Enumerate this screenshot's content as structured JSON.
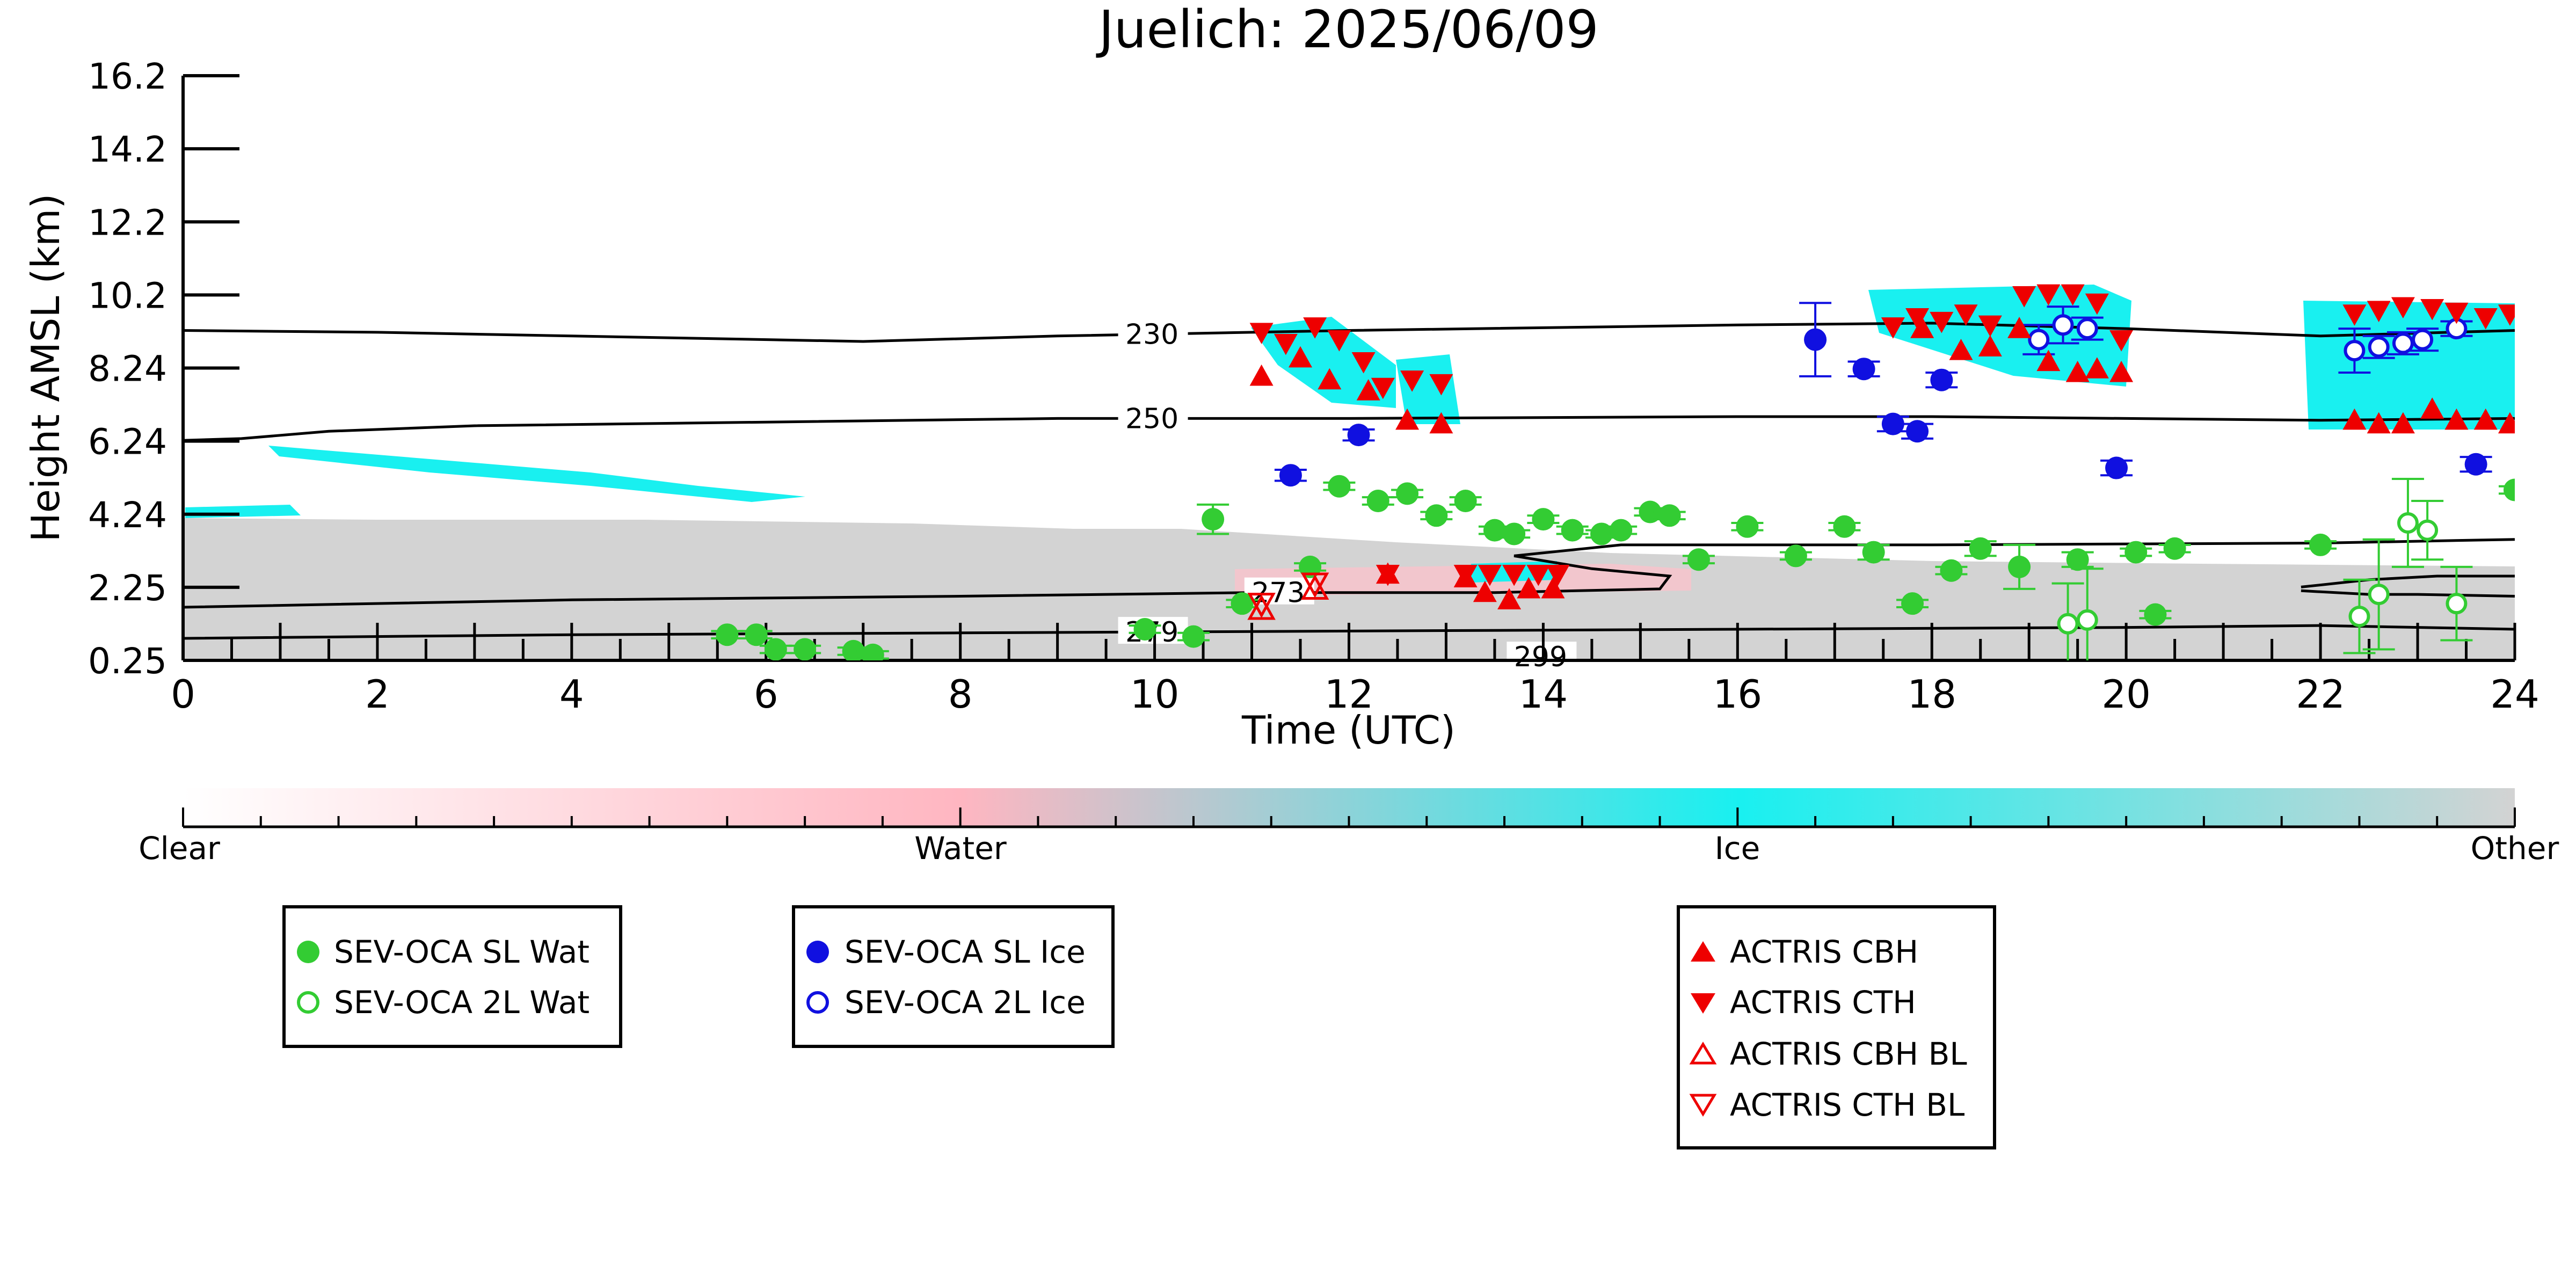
{
  "chart_data": {
    "type": "scatter",
    "title": "Juelich: 2025/06/09",
    "xlabel": "Time (UTC)",
    "ylabel": "Height AMSL (km)",
    "xlim": [
      0,
      24
    ],
    "ylim": [
      0.25,
      16.2
    ],
    "y_ticks": [
      "0.25",
      "2.25",
      "4.24",
      "6.24",
      "8.24",
      "10.2",
      "12.2",
      "14.2",
      "16.2"
    ],
    "x_ticks": [
      "0",
      "2",
      "4",
      "6",
      "8",
      "10",
      "12",
      "14",
      "16",
      "18",
      "20",
      "22",
      "24"
    ],
    "colors": {
      "sl_wat": "#33cc33",
      "l2_wat": "#33cc33",
      "sl_ice": "#1010e0",
      "l2_ice": "#1010e0",
      "actris": "#ee0000",
      "contour": "#000000",
      "ice_fill": "#19f0f0",
      "other_fill": "#d3d3d3",
      "water_fill": "#ffb6c1"
    },
    "colorbar": {
      "labels": [
        "Clear",
        "Water",
        "Ice",
        "Other"
      ],
      "stops": [
        "#ffffff",
        "#ffb6c1",
        "#19f0f0",
        "#d3d3d3"
      ]
    },
    "temperature_contours": [
      {
        "label": "230",
        "label_x": 10.0,
        "points": [
          [
            0,
            9.25
          ],
          [
            2,
            9.2
          ],
          [
            4,
            9.1
          ],
          [
            7,
            8.95
          ],
          [
            9,
            9.1
          ],
          [
            12,
            9.25
          ],
          [
            16,
            9.4
          ],
          [
            18,
            9.45
          ],
          [
            20,
            9.3
          ],
          [
            22,
            9.1
          ],
          [
            24,
            9.25
          ]
        ]
      },
      {
        "label": "250",
        "label_x": 10.0,
        "points": [
          [
            0,
            6.25
          ],
          [
            0.6,
            6.3
          ],
          [
            1.5,
            6.5
          ],
          [
            3,
            6.65
          ],
          [
            6,
            6.75
          ],
          [
            9,
            6.85
          ],
          [
            12,
            6.85
          ],
          [
            16,
            6.9
          ],
          [
            18,
            6.9
          ],
          [
            20,
            6.85
          ],
          [
            22,
            6.8
          ],
          [
            24,
            6.85
          ]
        ]
      },
      {
        "label": "273",
        "label_x": 11.3,
        "points": [
          [
            0,
            1.7
          ],
          [
            4,
            1.9
          ],
          [
            8,
            2.0
          ],
          [
            11,
            2.1
          ],
          [
            13.5,
            2.1
          ],
          [
            15.2,
            2.2
          ],
          [
            15.3,
            2.55
          ],
          [
            14.5,
            2.75
          ],
          [
            13.7,
            3.1
          ],
          [
            14.8,
            3.4
          ],
          [
            18,
            3.4
          ],
          [
            22,
            3.45
          ],
          [
            24,
            3.55
          ]
        ]
      },
      {
        "label": "",
        "label_x": 0,
        "points": [
          [
            21.8,
            2.15
          ],
          [
            22.5,
            2.05
          ],
          [
            23,
            2.05
          ],
          [
            24,
            2.0
          ]
        ]
      },
      {
        "label": "",
        "label_x": 0,
        "points": [
          [
            21.8,
            2.25
          ],
          [
            22.5,
            2.45
          ],
          [
            23.2,
            2.55
          ],
          [
            24,
            2.55
          ]
        ]
      },
      {
        "label": "279",
        "label_x": 10.0,
        "points": [
          [
            0,
            0.85
          ],
          [
            4,
            0.95
          ],
          [
            8,
            1.0
          ],
          [
            12,
            1.05
          ],
          [
            16,
            1.1
          ],
          [
            20,
            1.15
          ],
          [
            22,
            1.2
          ],
          [
            24,
            1.1
          ]
        ]
      },
      {
        "label": "299",
        "label_x": 14.0,
        "points": []
      }
    ],
    "series": [
      {
        "name": "SEV-OCA SL Wat",
        "key": "sl_wat",
        "filled": true,
        "marker": "circle",
        "x": [
          5.6,
          5.9,
          6.1,
          6.4,
          6.9,
          7.1,
          9.9,
          10.4,
          10.6,
          10.9,
          11.6,
          11.9,
          12.3,
          12.6,
          12.9,
          13.2,
          13.5,
          13.7,
          14.0,
          14.3,
          14.6,
          14.8,
          15.1,
          15.3,
          15.6,
          16.1,
          16.6,
          17.1,
          17.4,
          17.8,
          18.2,
          18.5,
          18.9,
          19.5,
          20.1,
          20.3,
          20.5,
          22.0,
          24.0
        ],
        "y": [
          0.95,
          0.95,
          0.55,
          0.55,
          0.5,
          0.4,
          1.1,
          0.9,
          4.1,
          1.8,
          2.8,
          5.0,
          4.6,
          4.8,
          4.2,
          4.6,
          3.8,
          3.7,
          4.1,
          3.8,
          3.7,
          3.8,
          4.3,
          4.2,
          3.0,
          3.9,
          3.1,
          3.9,
          3.2,
          1.8,
          2.7,
          3.3,
          2.8,
          3.0,
          3.2,
          1.5,
          3.3,
          3.4,
          4.9
        ],
        "yerr": [
          0.1,
          0.1,
          0.1,
          0.1,
          0.1,
          0.1,
          0.1,
          0.1,
          0.4,
          0.1,
          0.1,
          0.1,
          0.1,
          0.1,
          0.1,
          0.1,
          0.1,
          0.1,
          0.1,
          0.1,
          0.1,
          0.1,
          0.1,
          0.1,
          0.1,
          0.1,
          0.1,
          0.1,
          0.2,
          0.1,
          0.1,
          0.2,
          0.6,
          0.2,
          0.1,
          0.1,
          0.1,
          0.1,
          0.1
        ]
      },
      {
        "name": "SEV-OCA 2L Wat",
        "key": "l2_wat",
        "filled": false,
        "marker": "circle",
        "x": [
          19.4,
          19.6,
          22.4,
          22.6,
          22.9,
          23.1,
          23.4
        ],
        "y": [
          1.25,
          1.35,
          1.45,
          2.05,
          4.0,
          3.8,
          1.8
        ],
        "yerr": [
          1.1,
          1.4,
          1.0,
          1.5,
          1.2,
          0.8,
          1.0
        ]
      },
      {
        "name": "SEV-OCA SL Ice",
        "key": "sl_ice",
        "filled": true,
        "marker": "circle",
        "x": [
          11.4,
          12.1,
          16.8,
          17.3,
          17.6,
          17.85,
          18.1,
          19.9,
          23.6
        ],
        "y": [
          5.3,
          6.4,
          9.0,
          8.2,
          6.7,
          6.5,
          7.9,
          5.5,
          5.6
        ],
        "yerr": [
          0.15,
          0.15,
          1.0,
          0.2,
          0.2,
          0.2,
          0.2,
          0.2,
          0.2
        ]
      },
      {
        "name": "SEV-OCA 2L Ice",
        "key": "l2_ice",
        "filled": false,
        "marker": "circle",
        "x": [
          19.1,
          19.35,
          19.6,
          22.35,
          22.6,
          22.85,
          23.05,
          23.4
        ],
        "y": [
          9.0,
          9.4,
          9.3,
          8.7,
          8.8,
          8.9,
          9.0,
          9.3
        ],
        "yerr": [
          0.4,
          0.5,
          0.3,
          0.6,
          0.3,
          0.3,
          0.3,
          0.2
        ]
      },
      {
        "name": "ACTRIS CBH",
        "key": "actris",
        "filled": true,
        "marker": "triangle-up",
        "x": [
          11.1,
          11.5,
          11.8,
          12.2,
          12.6,
          12.95,
          12.4,
          13.2,
          13.4,
          13.65,
          13.85,
          14.1,
          17.9,
          18.3,
          18.6,
          18.9,
          19.2,
          19.5,
          19.7,
          19.95,
          22.35,
          22.6,
          22.85,
          23.15,
          23.4,
          23.7,
          23.95
        ],
        "y": [
          8.0,
          8.5,
          7.9,
          7.6,
          6.8,
          6.7,
          2.6,
          2.5,
          2.1,
          1.9,
          2.2,
          2.2,
          9.3,
          8.7,
          8.8,
          9.3,
          8.4,
          8.1,
          8.2,
          8.1,
          6.8,
          6.7,
          6.7,
          7.1,
          6.8,
          6.8,
          6.7
        ]
      },
      {
        "name": "ACTRIS CTH",
        "key": "actris",
        "filled": true,
        "marker": "triangle-down",
        "x": [
          11.1,
          11.35,
          11.65,
          11.9,
          12.15,
          12.35,
          12.4,
          12.65,
          12.95,
          13.2,
          13.45,
          13.7,
          13.95,
          14.15,
          17.6,
          17.85,
          18.1,
          18.35,
          18.6,
          18.95,
          19.2,
          19.45,
          19.7,
          19.95,
          22.35,
          22.6,
          22.85,
          23.15,
          23.4,
          23.7,
          23.95
        ],
        "y": [
          9.2,
          8.9,
          9.35,
          9.0,
          8.4,
          7.7,
          2.6,
          7.9,
          7.8,
          2.6,
          2.6,
          2.6,
          2.6,
          2.6,
          9.35,
          9.6,
          9.5,
          9.7,
          9.4,
          10.2,
          10.25,
          10.25,
          10.0,
          9.0,
          9.7,
          9.8,
          9.9,
          9.85,
          9.75,
          9.6,
          9.7
        ]
      },
      {
        "name": "ACTRIS CBH BL",
        "key": "actris",
        "filled": false,
        "marker": "triangle-up",
        "x": [
          11.1,
          11.65
        ],
        "y": [
          1.65,
          2.2
        ]
      },
      {
        "name": "ACTRIS CTH BL",
        "key": "actris",
        "filled": false,
        "marker": "triangle-down",
        "x": [
          11.1,
          11.65
        ],
        "y": [
          1.8,
          2.35
        ]
      }
    ],
    "legends": [
      {
        "entries": [
          "SEV-OCA SL Wat",
          "SEV-OCA 2L Wat"
        ]
      },
      {
        "entries": [
          "SEV-OCA SL Ice",
          "SEV-OCA 2L Ice"
        ]
      },
      {
        "entries": [
          "ACTRIS CBH",
          "ACTRIS CTH",
          "ACTRIS CBH BL",
          "ACTRIS CTH BL"
        ]
      }
    ]
  }
}
